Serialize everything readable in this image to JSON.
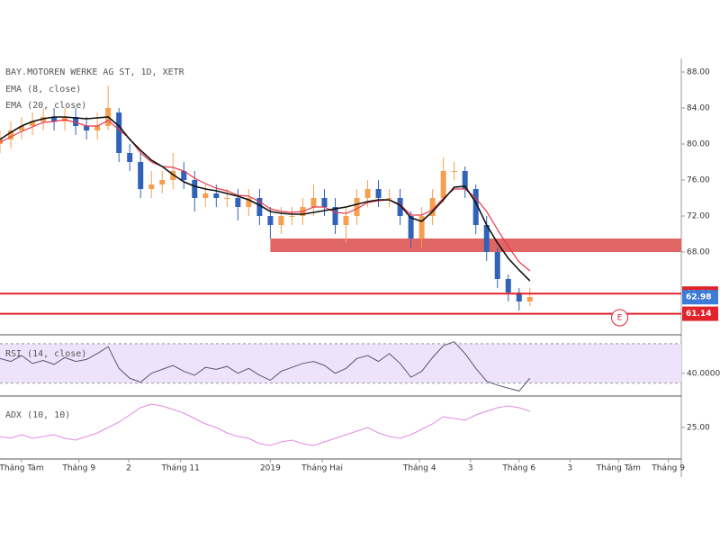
{
  "chart_data": {
    "type": "candlestick",
    "title": "BAY.MOTOREN WERKE AG ST, 1D, XETR",
    "xlim": [
      0,
      63
    ],
    "xticks": [
      {
        "value": 2,
        "label": "Tháng Tám"
      },
      {
        "value": 7.3,
        "label": "Tháng 9"
      },
      {
        "value": 11.9,
        "label": "2"
      },
      {
        "value": 16.7,
        "label": "Tháng 11"
      },
      {
        "value": 25,
        "label": "2019"
      },
      {
        "value": 29.8,
        "label": "Tháng Hai"
      },
      {
        "value": 38.8,
        "label": "Tháng 4"
      },
      {
        "value": 43.5,
        "label": "3"
      },
      {
        "value": 48,
        "label": "Tháng 6"
      },
      {
        "value": 52.7,
        "label": "3"
      },
      {
        "value": 57.2,
        "label": "Tháng Tám"
      },
      {
        "value": 61.8,
        "label": "Tháng 9"
      }
    ],
    "ylim": [
      58.8,
      89.5
    ],
    "yticks": [
      {
        "value": 68,
        "label": "68.00"
      },
      {
        "value": 72,
        "label": "72.00"
      },
      {
        "value": 76,
        "label": "76.00"
      },
      {
        "value": 80,
        "label": "80.00"
      },
      {
        "value": 84,
        "label": "84.00"
      },
      {
        "value": 88,
        "label": "88.00"
      }
    ],
    "up_color": "#f5a04f",
    "down_color": "#2f62b8",
    "open": [
      80,
      80.5,
      81.5,
      82,
      82.5,
      83,
      82.5,
      83,
      82,
      81.5,
      82,
      83.5,
      79,
      78,
      75,
      75.5,
      76,
      77,
      76,
      74,
      74.5,
      74,
      74,
      73,
      74,
      72,
      71,
      72,
      72,
      73,
      74,
      73,
      71,
      72,
      74,
      75,
      74,
      74,
      72,
      69.5,
      72,
      74,
      77,
      77,
      75,
      71,
      68,
      65,
      63.5,
      62.5
    ],
    "high": [
      81.5,
      82.5,
      83,
      83.5,
      84,
      84,
      84,
      84,
      83,
      83.5,
      86.5,
      84,
      80,
      79,
      77,
      77,
      79,
      78,
      77,
      75.5,
      75.5,
      75,
      75,
      75,
      75,
      73,
      73,
      73,
      74,
      75.5,
      75,
      74,
      73,
      75,
      76,
      76,
      75,
      75,
      72.5,
      73,
      75,
      78.5,
      78,
      77.5,
      75.5,
      72,
      68.5,
      65.5,
      64,
      64
    ],
    "low": [
      79,
      79.5,
      80.5,
      81,
      81.5,
      81.5,
      81.5,
      81,
      80.5,
      80.5,
      81.5,
      78,
      77,
      74,
      74,
      74.5,
      75,
      75,
      72.5,
      73,
      73,
      73,
      71.5,
      72,
      71,
      69.5,
      70,
      71,
      71,
      72,
      72,
      70,
      69,
      71,
      73,
      73,
      73,
      71,
      68.5,
      68.5,
      71,
      73.5,
      76,
      74,
      70,
      67,
      64,
      62.5,
      61.5,
      62
    ],
    "close": [
      80.5,
      81.5,
      82,
      82.5,
      83,
      82.5,
      83,
      82,
      81.5,
      82,
      84,
      79,
      78,
      75,
      75.5,
      76,
      77,
      76,
      74,
      74.5,
      74,
      74,
      73,
      74,
      72,
      71,
      72,
      72,
      73,
      74,
      73,
      71,
      72,
      74,
      75,
      74,
      74,
      72,
      69.5,
      72,
      74,
      77,
      77,
      75,
      71,
      68,
      65,
      63.5,
      62.5,
      63
    ],
    "series": [
      {
        "name": "EMA (8, close)",
        "color": "#e8364a",
        "values": [
          80.2,
          80.8,
          81.4,
          81.9,
          82.4,
          82.5,
          82.7,
          82.4,
          82,
          82,
          82.6,
          81.6,
          80.6,
          79,
          78,
          77.5,
          77.4,
          77,
          76.2,
          75.6,
          75.1,
          74.8,
          74.3,
          74.2,
          73.6,
          72.8,
          72.5,
          72.4,
          72.5,
          73,
          73,
          72.4,
          72.3,
          72.8,
          73.5,
          73.7,
          73.8,
          73.3,
          72.1,
          72.1,
          72.7,
          74,
          75,
          75,
          74,
          72.5,
          70.5,
          68.6,
          66.9,
          65.9
        ]
      },
      {
        "name": "EMA (20, close)",
        "color": "#111111",
        "values": [
          80.5,
          81.3,
          82,
          82.5,
          82.8,
          83,
          83,
          82.9,
          82.8,
          82.9,
          83,
          82,
          80.5,
          79.3,
          78.2,
          77.5,
          76.6,
          75.8,
          75.3,
          75,
          74.8,
          74.5,
          74.2,
          73.8,
          73.2,
          72.5,
          72.3,
          72.2,
          72.2,
          72.4,
          72.6,
          72.8,
          73,
          73.3,
          73.6,
          73.8,
          73.8,
          73.2,
          71.8,
          71.4,
          72.5,
          73.8,
          75.2,
          75.3,
          73.5,
          71,
          69,
          67.3,
          66,
          64.8
        ]
      }
    ],
    "zone": {
      "from": 68,
      "to": 69.5,
      "start": 25,
      "color": "#e06666"
    },
    "price_labels": [
      {
        "value": 63.38,
        "color": "#e0242b",
        "line": true
      },
      {
        "value": 62.98,
        "color": "#3d7bd6",
        "line": false
      },
      {
        "value": 61.14,
        "color": "#e0242b",
        "line": true
      }
    ],
    "events": [
      {
        "x": 57.3,
        "label": "E"
      }
    ],
    "indicators": [
      {
        "name": "RSI (14, close)",
        "color": "#555577",
        "ylim": [
          17,
          79
        ],
        "band": [
          30,
          70
        ],
        "band_color": "#efe3fb",
        "yticks": [
          {
            "value": 40,
            "label": "40.0000"
          }
        ],
        "values": [
          55,
          52,
          58,
          50,
          53,
          49,
          56,
          52,
          54,
          60,
          67,
          45,
          35,
          31,
          40,
          44,
          48,
          42,
          38,
          46,
          44,
          47,
          40,
          45,
          38,
          33,
          42,
          46,
          50,
          52,
          48,
          40,
          45,
          55,
          58,
          52,
          60,
          50,
          36,
          42,
          56,
          68,
          72,
          60,
          45,
          32,
          28,
          25,
          22,
          35
        ]
      },
      {
        "name": "ADX (10, 10)",
        "color": "#e28ae6",
        "ylim": [
          7.5,
          42.5
        ],
        "yticks": [
          {
            "value": 25,
            "label": "25.00"
          }
        ],
        "values": [
          20,
          19,
          21,
          19,
          20,
          21,
          19,
          18,
          20,
          22,
          25,
          28,
          32,
          36,
          38,
          37,
          35,
          33,
          30,
          27,
          25,
          22,
          20,
          19,
          16,
          15,
          17,
          18,
          16,
          15,
          17,
          19,
          21,
          23,
          25,
          22,
          20,
          19,
          21,
          24,
          27,
          31,
          30,
          29,
          32,
          34,
          36,
          37,
          36,
          34
        ]
      }
    ]
  }
}
